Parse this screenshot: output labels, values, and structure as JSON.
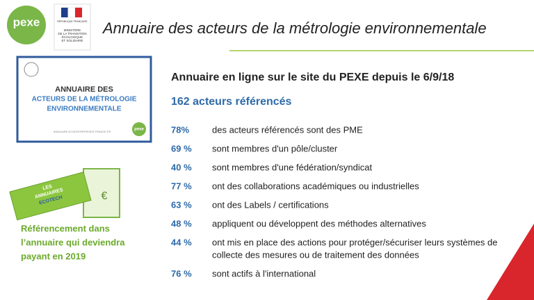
{
  "header": {
    "logo": "pexe",
    "ministry": [
      "MINISTÈRE",
      "DE LA TRANSITION",
      "ÉCOLOGIQUE",
      "ET SOLIDAIRE"
    ],
    "republic": "RÉPUBLIQUE FRANÇAISE",
    "title": "Annuaire des acteurs de la métrologie environnementale"
  },
  "card": {
    "line1": "ANNUAIRE DES",
    "line2": "ACTEURS DE LA MÉTROLOGIE",
    "line3": "ENVIRONNEMENTALE",
    "url": "ANNUAIRE.ECOENTREPRISES.FRANCE.FR",
    "logo": "pexe"
  },
  "ecotech": {
    "line1": "LES",
    "line2": "ANNUAIRES",
    "line3": "ECOTECH",
    "currency": "€"
  },
  "note": [
    "Référencement dans",
    "l’annuaire qui deviendra",
    "payant en 2019"
  ],
  "intro": "Annuaire en ligne sur le site du PEXE depuis le 6/9/18",
  "count": "162 acteurs référencés",
  "stats": [
    {
      "label": "78%",
      "lines": [
        "des acteurs référencés sont des PME"
      ]
    },
    {
      "label": "69 %",
      "lines": [
        "sont membres d'un pôle/cluster"
      ]
    },
    {
      "label": "40 %",
      "lines": [
        "sont membres d'une fédération/syndicat"
      ]
    },
    {
      "label": "77 %",
      "lines": [
        "ont des collaborations académiques ou industrielles"
      ]
    },
    {
      "label": "63 %",
      "lines": [
        "ont des Labels / certifications"
      ]
    },
    {
      "label": "48 %",
      "lines": [
        "appliquent ou développent des méthodes alternatives"
      ]
    },
    {
      "label": "44 %",
      "lines": [
        "ont mis en place des actions pour protéger/sécuriser leurs systèmes de",
        "collecte des mesures ou de traitement des données"
      ]
    },
    {
      "label": "76 %",
      "lines": [
        "sont actifs à l'international"
      ]
    }
  ]
}
